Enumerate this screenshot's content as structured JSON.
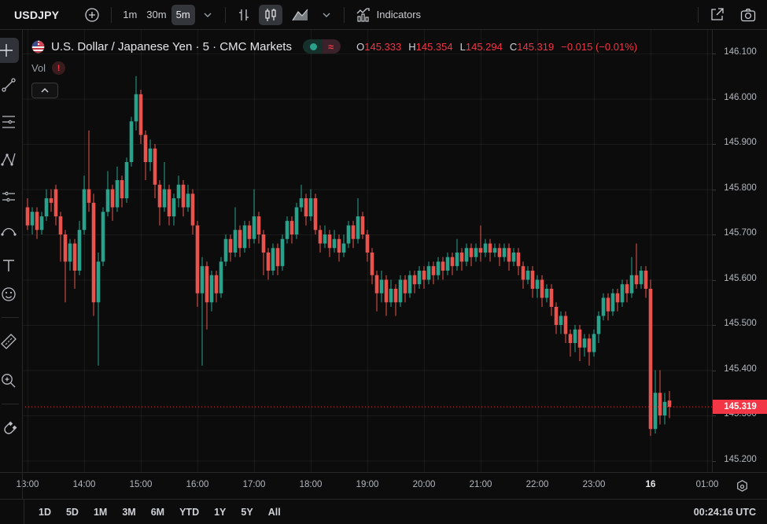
{
  "toolbar": {
    "symbol": "USDJPY",
    "intervals": [
      "1m",
      "30m",
      "5m"
    ],
    "selected_interval": "5m",
    "indicators_label": "Indicators",
    "icons": [
      "compare-add-icon",
      "interval-chevron-icon",
      "bars-chart-type-icon",
      "candles-chart-type-icon",
      "area-chart-type-icon",
      "chart-type-chevron-icon",
      "indicators-icon",
      "open-in-new-window-icon",
      "camera-snapshot-icon"
    ]
  },
  "header": {
    "title": "U.S. Dollar / Japanese Yen · 5 · CMC Markets",
    "status_icons": [
      "connected-dot-icon",
      "delayed-data-icon"
    ],
    "delayed_symbol": "≈",
    "ohlc": {
      "o_key": "O",
      "o": "145.333",
      "h_key": "H",
      "h": "145.354",
      "l_key": "L",
      "l": "145.294",
      "c_key": "C",
      "c": "145.319"
    },
    "change": "−0.015 (−0.01%)",
    "vol_label": "Vol",
    "vol_warning": "!"
  },
  "sidebar": {
    "tools": [
      "crosshair",
      "trend-line",
      "fib-retracement",
      "xabcd-pattern",
      "forecast",
      "arc-brush",
      "text",
      "emoji",
      "ruler",
      "zoom-in",
      "magnet"
    ],
    "active_tool": "crosshair"
  },
  "price_axis": {
    "labels": [
      "146.100",
      "146.000",
      "145.900",
      "145.800",
      "145.700",
      "145.600",
      "145.500",
      "145.400",
      "145.300",
      "145.200"
    ],
    "current_price": "145.319"
  },
  "time_axis": {
    "labels": [
      {
        "idx": 0,
        "text": "13:00",
        "bold": false
      },
      {
        "idx": 12,
        "text": "14:00",
        "bold": false
      },
      {
        "idx": 24,
        "text": "15:00",
        "bold": false
      },
      {
        "idx": 36,
        "text": "16:00",
        "bold": false
      },
      {
        "idx": 48,
        "text": "17:00",
        "bold": false
      },
      {
        "idx": 60,
        "text": "18:00",
        "bold": false
      },
      {
        "idx": 72,
        "text": "19:00",
        "bold": false
      },
      {
        "idx": 84,
        "text": "20:00",
        "bold": false
      },
      {
        "idx": 96,
        "text": "21:00",
        "bold": false
      },
      {
        "idx": 108,
        "text": "22:00",
        "bold": false
      },
      {
        "idx": 120,
        "text": "23:00",
        "bold": false
      },
      {
        "idx": 132,
        "text": "16",
        "bold": true
      },
      {
        "idx": 144,
        "text": "01:00",
        "bold": false
      }
    ]
  },
  "bottom_bar": {
    "ranges": [
      "1D",
      "5D",
      "1M",
      "3M",
      "6M",
      "YTD",
      "1Y",
      "5Y",
      "All"
    ],
    "clock": "00:24:16 UTC"
  },
  "colors": {
    "up": "#2aa28b",
    "down": "#e8534e",
    "accent_red": "#f23645",
    "grid": "rgba(255,255,255,0.06)",
    "background": "#111111"
  },
  "chart_data": {
    "type": "candlestick",
    "symbol": "USDJPY",
    "interval_minutes": 5,
    "source": "CMC Markets",
    "ylim": [
      145.2,
      146.1
    ],
    "grid": true,
    "last_price": 145.319,
    "columns": [
      "time",
      "open",
      "high",
      "low",
      "close"
    ],
    "candles": [
      [
        "13:00",
        145.76,
        145.78,
        145.71,
        145.72
      ],
      [
        "13:05",
        145.72,
        145.76,
        145.7,
        145.75
      ],
      [
        "13:10",
        145.75,
        145.76,
        145.69,
        145.71
      ],
      [
        "13:15",
        145.71,
        145.75,
        145.7,
        145.74
      ],
      [
        "13:20",
        145.74,
        145.8,
        145.73,
        145.78
      ],
      [
        "13:25",
        145.78,
        145.8,
        145.75,
        145.77
      ],
      [
        "13:30",
        145.8,
        145.81,
        145.72,
        145.74
      ],
      [
        "13:35",
        145.74,
        145.75,
        145.64,
        145.7
      ],
      [
        "13:40",
        145.7,
        145.71,
        145.55,
        145.64
      ],
      [
        "13:45",
        145.64,
        145.69,
        145.62,
        145.68
      ],
      [
        "13:50",
        145.68,
        145.69,
        145.58,
        145.62
      ],
      [
        "13:55",
        145.62,
        145.73,
        145.61,
        145.71
      ],
      [
        "14:00",
        145.71,
        145.83,
        145.7,
        145.8
      ],
      [
        "14:05",
        145.8,
        145.93,
        145.75,
        145.77
      ],
      [
        "14:10",
        145.77,
        145.79,
        145.52,
        145.55
      ],
      [
        "14:15",
        145.55,
        145.66,
        145.41,
        145.64
      ],
      [
        "14:20",
        145.64,
        145.76,
        145.63,
        145.75
      ],
      [
        "14:25",
        145.75,
        145.84,
        145.74,
        145.8
      ],
      [
        "14:30",
        145.8,
        145.81,
        145.73,
        145.76
      ],
      [
        "14:35",
        145.76,
        145.85,
        145.75,
        145.82
      ],
      [
        "14:40",
        145.82,
        145.83,
        145.76,
        145.78
      ],
      [
        "14:45",
        145.78,
        145.87,
        145.77,
        145.86
      ],
      [
        "14:50",
        145.86,
        145.96,
        145.85,
        145.95
      ],
      [
        "14:55",
        145.95,
        146.05,
        145.93,
        146.01
      ],
      [
        "15:00",
        146.01,
        146.02,
        145.9,
        145.92
      ],
      [
        "15:05",
        145.92,
        145.93,
        145.82,
        145.86
      ],
      [
        "15:10",
        145.86,
        145.91,
        145.84,
        145.89
      ],
      [
        "15:15",
        145.89,
        145.9,
        145.78,
        145.81
      ],
      [
        "15:20",
        145.81,
        145.82,
        145.72,
        145.76
      ],
      [
        "15:25",
        145.76,
        145.86,
        145.75,
        145.8
      ],
      [
        "15:30",
        145.8,
        145.81,
        145.72,
        145.74
      ],
      [
        "15:35",
        145.74,
        145.79,
        145.72,
        145.78
      ],
      [
        "15:40",
        145.78,
        145.83,
        145.76,
        145.81
      ],
      [
        "15:45",
        145.81,
        145.82,
        145.74,
        145.76
      ],
      [
        "15:50",
        145.76,
        145.81,
        145.75,
        145.79
      ],
      [
        "15:55",
        145.79,
        145.8,
        145.7,
        145.72
      ],
      [
        "16:00",
        145.72,
        145.73,
        145.54,
        145.57
      ],
      [
        "16:05",
        145.57,
        145.65,
        145.41,
        145.63
      ],
      [
        "16:10",
        145.63,
        145.64,
        145.49,
        145.55
      ],
      [
        "16:15",
        145.55,
        145.62,
        145.53,
        145.61
      ],
      [
        "16:20",
        145.61,
        145.62,
        145.55,
        145.57
      ],
      [
        "16:25",
        145.57,
        145.65,
        145.56,
        145.64
      ],
      [
        "16:30",
        145.64,
        145.7,
        145.63,
        145.69
      ],
      [
        "16:35",
        145.69,
        145.7,
        145.64,
        145.66
      ],
      [
        "16:40",
        145.66,
        145.76,
        145.65,
        145.71
      ],
      [
        "16:45",
        145.71,
        145.72,
        145.65,
        145.67
      ],
      [
        "16:50",
        145.67,
        145.73,
        145.66,
        145.72
      ],
      [
        "16:55",
        145.72,
        145.73,
        145.67,
        145.69
      ],
      [
        "17:00",
        145.69,
        145.8,
        145.68,
        145.74
      ],
      [
        "17:05",
        145.74,
        145.75,
        145.68,
        145.7
      ],
      [
        "17:10",
        145.7,
        145.71,
        145.61,
        145.66
      ],
      [
        "17:15",
        145.66,
        145.67,
        145.6,
        145.62
      ],
      [
        "17:20",
        145.62,
        145.68,
        145.61,
        145.67
      ],
      [
        "17:25",
        145.67,
        145.68,
        145.61,
        145.63
      ],
      [
        "17:30",
        145.63,
        145.7,
        145.62,
        145.69
      ],
      [
        "17:35",
        145.69,
        145.74,
        145.68,
        145.73
      ],
      [
        "17:40",
        145.73,
        145.74,
        145.68,
        145.7
      ],
      [
        "17:45",
        145.7,
        145.77,
        145.69,
        145.76
      ],
      [
        "17:50",
        145.76,
        145.81,
        145.75,
        145.78
      ],
      [
        "17:55",
        145.78,
        145.79,
        145.72,
        145.74
      ],
      [
        "18:00",
        145.74,
        145.8,
        145.73,
        145.78
      ],
      [
        "18:05",
        145.78,
        145.79,
        145.7,
        145.71
      ],
      [
        "18:10",
        145.71,
        145.72,
        145.66,
        145.68
      ],
      [
        "18:15",
        145.68,
        145.72,
        145.67,
        145.7
      ],
      [
        "18:20",
        145.7,
        145.71,
        145.65,
        145.67
      ],
      [
        "18:25",
        145.67,
        145.71,
        145.66,
        145.69
      ],
      [
        "18:30",
        145.69,
        145.7,
        145.64,
        145.66
      ],
      [
        "18:35",
        145.66,
        145.7,
        145.65,
        145.68
      ],
      [
        "18:40",
        145.68,
        145.73,
        145.67,
        145.72
      ],
      [
        "18:45",
        145.72,
        145.73,
        145.67,
        145.69
      ],
      [
        "18:50",
        145.69,
        145.78,
        145.68,
        145.74
      ],
      [
        "18:55",
        145.74,
        145.75,
        145.69,
        145.7
      ],
      [
        "19:00",
        145.7,
        145.71,
        145.64,
        145.66
      ],
      [
        "19:05",
        145.66,
        145.67,
        145.59,
        145.61
      ],
      [
        "19:10",
        145.61,
        145.62,
        145.53,
        145.57
      ],
      [
        "19:15",
        145.57,
        145.62,
        145.55,
        145.6
      ],
      [
        "19:20",
        145.6,
        145.61,
        145.52,
        145.55
      ],
      [
        "19:25",
        145.55,
        145.6,
        145.54,
        145.58
      ],
      [
        "19:30",
        145.58,
        145.59,
        145.52,
        145.55
      ],
      [
        "19:35",
        145.55,
        145.61,
        145.54,
        145.6
      ],
      [
        "19:40",
        145.6,
        145.61,
        145.55,
        145.57
      ],
      [
        "19:45",
        145.57,
        145.62,
        145.56,
        145.61
      ],
      [
        "19:50",
        145.61,
        145.62,
        145.57,
        145.59
      ],
      [
        "19:55",
        145.59,
        145.63,
        145.58,
        145.62
      ],
      [
        "20:00",
        145.62,
        145.63,
        145.58,
        145.6
      ],
      [
        "20:05",
        145.6,
        145.64,
        145.59,
        145.63
      ],
      [
        "20:10",
        145.63,
        145.64,
        145.59,
        145.61
      ],
      [
        "20:15",
        145.61,
        145.65,
        145.6,
        145.64
      ],
      [
        "20:20",
        145.64,
        145.65,
        145.6,
        145.62
      ],
      [
        "20:25",
        145.62,
        145.66,
        145.61,
        145.65
      ],
      [
        "20:30",
        145.65,
        145.66,
        145.61,
        145.63
      ],
      [
        "20:35",
        145.63,
        145.69,
        145.62,
        145.66
      ],
      [
        "20:40",
        145.66,
        145.67,
        145.62,
        145.64
      ],
      [
        "20:45",
        145.64,
        145.68,
        145.63,
        145.67
      ],
      [
        "20:50",
        145.67,
        145.68,
        145.63,
        145.65
      ],
      [
        "20:55",
        145.65,
        145.68,
        145.64,
        145.67
      ],
      [
        "21:00",
        145.67,
        145.72,
        145.64,
        145.66
      ],
      [
        "21:05",
        145.66,
        145.69,
        145.65,
        145.68
      ],
      [
        "21:10",
        145.68,
        145.69,
        145.64,
        145.66
      ],
      [
        "21:15",
        145.66,
        145.68,
        145.65,
        145.67
      ],
      [
        "21:20",
        145.67,
        145.68,
        145.63,
        145.65
      ],
      [
        "21:25",
        145.65,
        145.68,
        145.64,
        145.67
      ],
      [
        "21:30",
        145.67,
        145.68,
        145.62,
        145.64
      ],
      [
        "21:35",
        145.64,
        145.67,
        145.63,
        145.66
      ],
      [
        "21:40",
        145.66,
        145.67,
        145.61,
        145.63
      ],
      [
        "21:45",
        145.63,
        145.64,
        145.58,
        145.6
      ],
      [
        "21:50",
        145.6,
        145.63,
        145.59,
        145.62
      ],
      [
        "21:55",
        145.62,
        145.63,
        145.56,
        145.58
      ],
      [
        "22:00",
        145.58,
        145.61,
        145.56,
        145.6
      ],
      [
        "22:05",
        145.6,
        145.61,
        145.54,
        145.56
      ],
      [
        "22:10",
        145.56,
        145.59,
        145.55,
        145.58
      ],
      [
        "22:15",
        145.58,
        145.59,
        145.52,
        145.54
      ],
      [
        "22:20",
        145.54,
        145.55,
        145.48,
        145.5
      ],
      [
        "22:25",
        145.5,
        145.53,
        145.48,
        145.52
      ],
      [
        "22:30",
        145.52,
        145.53,
        145.46,
        145.48
      ],
      [
        "22:35",
        145.48,
        145.49,
        145.43,
        145.46
      ],
      [
        "22:40",
        145.46,
        145.5,
        145.44,
        145.49
      ],
      [
        "22:45",
        145.49,
        145.5,
        145.42,
        145.45
      ],
      [
        "22:50",
        145.45,
        145.48,
        145.43,
        145.47
      ],
      [
        "22:55",
        145.47,
        145.48,
        145.41,
        145.44
      ],
      [
        "23:00",
        145.44,
        145.49,
        145.43,
        145.48
      ],
      [
        "23:05",
        145.48,
        145.53,
        145.46,
        145.52
      ],
      [
        "23:10",
        145.52,
        145.57,
        145.51,
        145.56
      ],
      [
        "23:15",
        145.56,
        145.57,
        145.51,
        145.53
      ],
      [
        "23:20",
        145.53,
        145.58,
        145.52,
        145.57
      ],
      [
        "23:25",
        145.57,
        145.58,
        145.53,
        145.55
      ],
      [
        "23:30",
        145.55,
        145.6,
        145.54,
        145.59
      ],
      [
        "23:35",
        145.59,
        145.6,
        145.55,
        145.57
      ],
      [
        "23:40",
        145.57,
        145.65,
        145.56,
        145.61
      ],
      [
        "23:45",
        145.61,
        145.68,
        145.58,
        145.59
      ],
      [
        "23:50",
        145.59,
        145.63,
        145.58,
        145.62
      ],
      [
        "23:55",
        145.62,
        145.63,
        145.56,
        145.58
      ],
      [
        "00:00",
        145.58,
        145.6,
        145.255,
        145.27
      ],
      [
        "00:05",
        145.27,
        145.4,
        145.26,
        145.35
      ],
      [
        "00:10",
        145.35,
        145.4,
        145.28,
        145.3
      ],
      [
        "00:15",
        145.3,
        145.35,
        145.28,
        145.33
      ],
      [
        "00:20",
        145.333,
        145.354,
        145.294,
        145.319
      ]
    ]
  }
}
